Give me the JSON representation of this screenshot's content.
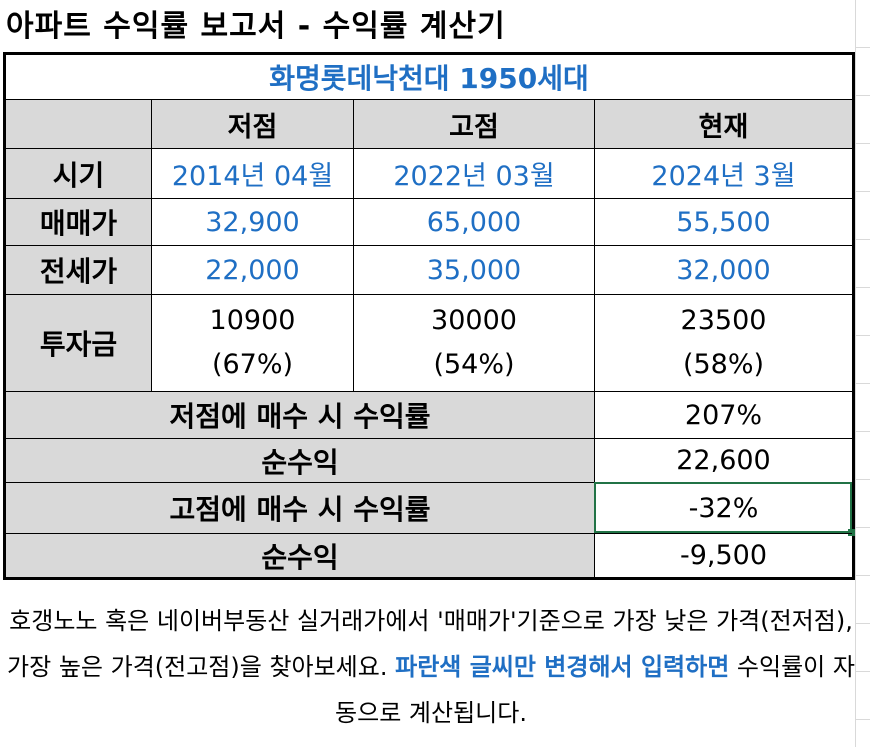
{
  "title": "아파트 수익률 보고서 - 수익률 계산기",
  "apartment": "화명롯데낙천대 1950세대",
  "columns": [
    "저점",
    "고점",
    "현재"
  ],
  "rows": {
    "period": {
      "label": "시기",
      "values": [
        "2014년 04월",
        "2022년 03월",
        "2024년 3월"
      ]
    },
    "sale": {
      "label": "매매가",
      "values": [
        "32,900",
        "65,000",
        "55,500"
      ]
    },
    "jeonse": {
      "label": "전세가",
      "values": [
        "22,000",
        "35,000",
        "32,000"
      ]
    },
    "investment": {
      "label": "투자금",
      "values": [
        "10900",
        "30000",
        "23500"
      ],
      "ratios": [
        "(67%)",
        "(54%)",
        "(58%)"
      ]
    }
  },
  "results": [
    {
      "label": "저점에 매수 시 수익률",
      "value": "207%"
    },
    {
      "label": "순수익",
      "value": "22,600"
    },
    {
      "label": "고점에 매수 시 수익률",
      "value": "-32%"
    },
    {
      "label": "순수익",
      "value": "-9,500"
    }
  ],
  "note": {
    "part1": "호갱노노 혹은 네이버부동산 실거래가에서 '매매가'기준으로 가장 낮은 가격(전저점), 가장 높은 가격(전고점)을 찾아보세요. ",
    "highlight": "파란색 글씨만 변경해서 입력하면",
    "part2": " 수익률이 자동으로 계산됩니다."
  },
  "colors": {
    "blue": "#1f6fc4",
    "header_gray": "#d9d9d9",
    "selection": "#217346"
  }
}
